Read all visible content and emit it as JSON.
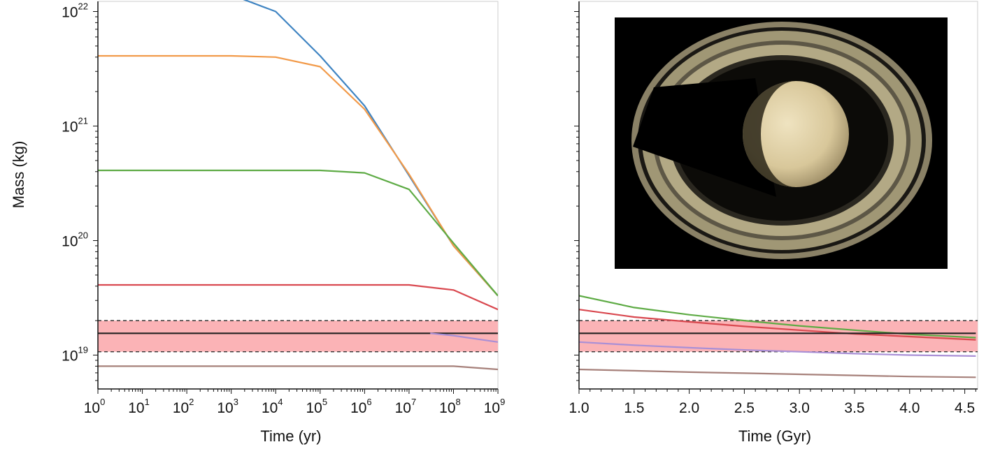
{
  "chart_data": [
    {
      "type": "line",
      "xlabel": "Time (yr)",
      "ylabel": "Mass (kg)",
      "xscale": "log",
      "yscale": "log",
      "xlim": [
        1,
        1000000000
      ],
      "ylim": [
        5000000000000000000,
        10000000000000000000000
      ],
      "xticks": [
        {
          "exp": 0
        },
        {
          "exp": 1
        },
        {
          "exp": 2
        },
        {
          "exp": 3
        },
        {
          "exp": 4
        },
        {
          "exp": 5
        },
        {
          "exp": 6
        },
        {
          "exp": 7
        },
        {
          "exp": 8
        },
        {
          "exp": 9
        }
      ],
      "yticks": [
        {
          "exp": 19
        },
        {
          "exp": 20
        },
        {
          "exp": 21
        },
        {
          "exp": 22
        }
      ],
      "tick_base": "10",
      "band": {
        "low": 10700000000000000000,
        "high": 20000000000000000000,
        "center": 15500000000000000000,
        "fill": "#fbb3b6",
        "edge_style": "dashed"
      },
      "series": [
        {
          "color": "#3f84c2",
          "x": [
            1000,
            10000,
            100000,
            1000000,
            10000000,
            100000000,
            1000000000
          ],
          "y": [
            1.4e+22,
            1e+22,
            4.1e+21,
            1.5e+21,
            3.7e+20,
            9e+19,
            3.3e+19
          ]
        },
        {
          "color": "#f29a49",
          "x": [
            1,
            1000,
            10000,
            100000,
            1000000,
            10000000,
            100000000,
            1000000000
          ],
          "y": [
            4.1e+21,
            4.1e+21,
            4e+21,
            3.3e+21,
            1.4e+21,
            3.8e+20,
            9e+19,
            3.3e+19
          ]
        },
        {
          "color": "#5eab45",
          "x": [
            1,
            10000,
            100000,
            1000000,
            10000000,
            100000000,
            1000000000
          ],
          "y": [
            4.1e+20,
            4.1e+20,
            4.1e+20,
            3.9e+20,
            2.8e+20,
            9.5e+19,
            3.3e+19
          ]
        },
        {
          "color": "#d9484f",
          "x": [
            1,
            1000000,
            10000000,
            100000000,
            1000000000
          ],
          "y": [
            4.1e+19,
            4.1e+19,
            4.1e+19,
            3.7e+19,
            2.5e+19
          ]
        },
        {
          "color": "#222222",
          "x": [
            1,
            1000000000
          ],
          "y": [
            1.55e+19,
            1.55e+19
          ]
        },
        {
          "color": "#a98fd6",
          "x": [
            30000000,
            100000000,
            1000000000
          ],
          "y": [
            1.55e+19,
            1.48e+19,
            1.3e+19
          ]
        },
        {
          "color": "#a6807a",
          "x": [
            1,
            100000000,
            1000000000
          ],
          "y": [
            8e+18,
            8e+18,
            7.5e+18
          ]
        }
      ]
    },
    {
      "type": "line",
      "xlabel": "Time (Gyr)",
      "ylabel": "",
      "xscale": "linear",
      "yscale": "log",
      "xlim": [
        1.0,
        4.6
      ],
      "ylim": [
        5000000000000000000,
        10000000000000000000000
      ],
      "xtick_labels": [
        "1.0",
        "1.5",
        "2.0",
        "2.5",
        "3.0",
        "3.5",
        "4.0",
        "4.5"
      ],
      "band": {
        "low": 10700000000000000000,
        "high": 20000000000000000000,
        "center": 15500000000000000000,
        "fill": "#fbb3b6",
        "edge_style": "dashed"
      },
      "series": [
        {
          "color": "#5eab45",
          "x": [
            1.0,
            1.5,
            2.0,
            2.5,
            3.0,
            3.5,
            4.0,
            4.6
          ],
          "y": [
            3.3e+19,
            2.6e+19,
            2.25e+19,
            2e+19,
            1.8e+19,
            1.65e+19,
            1.52e+19,
            1.42e+19
          ]
        },
        {
          "color": "#d9484f",
          "x": [
            1.0,
            1.5,
            2.0,
            2.5,
            3.0,
            3.5,
            4.0,
            4.6
          ],
          "y": [
            2.5e+19,
            2.15e+19,
            1.95e+19,
            1.78e+19,
            1.65e+19,
            1.53e+19,
            1.45e+19,
            1.36e+19
          ]
        },
        {
          "color": "#222222",
          "x": [
            1.0,
            4.6
          ],
          "y": [
            1.55e+19,
            1.55e+19
          ]
        },
        {
          "color": "#a98fd6",
          "x": [
            1.0,
            1.5,
            2.0,
            2.5,
            3.0,
            3.5,
            4.0,
            4.6
          ],
          "y": [
            1.3e+19,
            1.22e+19,
            1.16e+19,
            1.11e+19,
            1.07e+19,
            1.03e+19,
            1e+19,
            9.8e+18
          ]
        },
        {
          "color": "#a6807a",
          "x": [
            1.0,
            1.5,
            2.0,
            2.5,
            3.0,
            3.5,
            4.0,
            4.6
          ],
          "y": [
            7.5e+18,
            7.3e+18,
            7.1e+18,
            6.95e+18,
            6.8e+18,
            6.65e+18,
            6.5e+18,
            6.4e+18
          ]
        }
      ],
      "inset_image": {
        "subject": "saturn-with-rings",
        "background": "#000000"
      }
    }
  ]
}
